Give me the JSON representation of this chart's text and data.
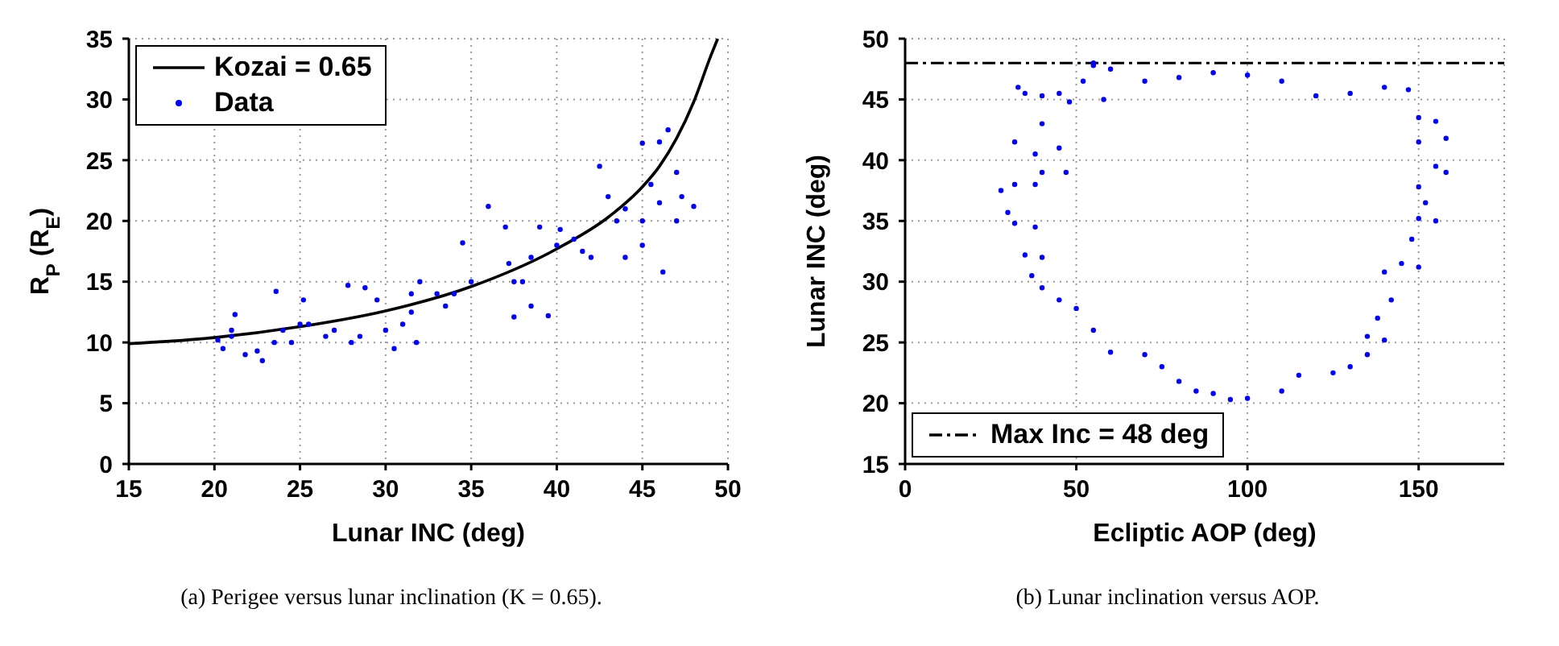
{
  "chart_data": [
    {
      "type": "scatter",
      "xlabel": "Lunar INC (deg)",
      "ylabel": "R$_{P}$ (R$_{E}$)",
      "xlim": [
        15,
        50
      ],
      "ylim": [
        0,
        35
      ],
      "xticks": [
        15,
        20,
        25,
        30,
        35,
        40,
        45,
        50
      ],
      "yticks": [
        0,
        5,
        10,
        15,
        20,
        25,
        30,
        35
      ],
      "grid": true,
      "legend": "top left",
      "annotations": [
        "(a) Perigee versus lunar inclination (K = 0.65)."
      ],
      "series": [
        {
          "name": "Kozai = 0.65",
          "type": "line",
          "color": "#000000",
          "marker": "none",
          "line_style": "solid",
          "x": [
            15,
            20,
            25,
            30,
            35,
            40,
            43,
            45,
            46,
            47,
            48,
            49,
            49.4
          ],
          "values": [
            9.9,
            10.4,
            11.3,
            12.6,
            14.6,
            17.7,
            20.3,
            22.8,
            24.5,
            26.8,
            29.8,
            33.6,
            35
          ]
        },
        {
          "name": "Data",
          "color": "#0000ff",
          "marker": "circle",
          "x": [
            20.2,
            20.5,
            21,
            21.2,
            21,
            21.8,
            22.5,
            22.8,
            23.5,
            23.6,
            24,
            24.5,
            25,
            25.2,
            25.5,
            26.5,
            27,
            28,
            28.5,
            27.8,
            28.8,
            29.5,
            30,
            30.5,
            31,
            31.5,
            31.8,
            31.5,
            32,
            33,
            33.5,
            34,
            34.5,
            35,
            36,
            37,
            37.5,
            37.2,
            38,
            38.5,
            39.5,
            37.5,
            38.5,
            39,
            40,
            40.2,
            41,
            41.5,
            42,
            42.5,
            43,
            43.5,
            44,
            44,
            45,
            46.2,
            45,
            45.5,
            46,
            45,
            46.5,
            47,
            47.3,
            48,
            47,
            46
          ],
          "values": [
            10.2,
            9.5,
            11,
            12.3,
            10.5,
            9,
            9.3,
            8.5,
            10,
            14.2,
            11,
            10,
            11.5,
            13.5,
            11.5,
            10.5,
            11,
            10,
            10.5,
            14.7,
            14.5,
            13.5,
            11,
            9.5,
            11.5,
            12.5,
            10,
            14,
            15,
            14,
            13,
            14,
            18.2,
            15,
            21.2,
            19.5,
            15,
            16.5,
            15,
            13,
            12.2,
            12.1,
            17,
            19.5,
            18,
            19.3,
            18.5,
            17.5,
            17,
            24.5,
            22,
            20,
            21,
            17,
            18,
            15.8,
            20,
            23,
            26.5,
            26.4,
            27.5,
            24,
            22,
            21.2,
            20,
            21.5
          ]
        }
      ]
    },
    {
      "type": "scatter",
      "xlabel": "Ecliptic AOP (deg)",
      "ylabel": "Lunar INC (deg)",
      "xlim": [
        0,
        175
      ],
      "ylim": [
        15,
        50
      ],
      "xticks": [
        0,
        50,
        100,
        150
      ],
      "yticks": [
        15,
        20,
        25,
        30,
        35,
        40,
        45,
        50
      ],
      "grid": true,
      "legend": "bottom left",
      "annotations": [
        "(b) Lunar inclination versus AOP."
      ],
      "ref_lines": [
        {
          "axis": "y",
          "value": 48,
          "label": "Max Inc = 48 deg",
          "color": "#000000",
          "line_style": "dashdot"
        }
      ],
      "series": [
        {
          "color": "#0000ff",
          "marker": "circle",
          "x": [
            55,
            60,
            70,
            80,
            90,
            100,
            110,
            120,
            130,
            140,
            147,
            150,
            155,
            158,
            150,
            155,
            158,
            150,
            152,
            150,
            155,
            148,
            145,
            150,
            140,
            142,
            138,
            135,
            140,
            135,
            130,
            125,
            115,
            110,
            100,
            95,
            90,
            85,
            80,
            75,
            70,
            60,
            55,
            50,
            45,
            40,
            37,
            35,
            40,
            32,
            38,
            30,
            28,
            32,
            38,
            40,
            47,
            38,
            32,
            45,
            40,
            35,
            40,
            45,
            33,
            48,
            52,
            58,
            55
          ],
          "values": [
            47.8,
            47.5,
            46.5,
            46.8,
            47.2,
            47,
            46.5,
            45.3,
            45.5,
            46,
            45.8,
            43.5,
            43.2,
            41.8,
            41.5,
            39.5,
            39,
            37.8,
            36.5,
            35.2,
            35,
            33.5,
            31.5,
            31.2,
            30.8,
            28.5,
            27,
            25.5,
            25.2,
            24,
            23,
            22.5,
            22.3,
            21,
            20.4,
            20.3,
            20.8,
            21,
            21.8,
            23,
            24,
            24.2,
            26,
            27.8,
            28.5,
            29.5,
            30.5,
            32.2,
            32,
            34.8,
            34.5,
            35.7,
            37.5,
            38,
            38,
            39,
            39,
            40.5,
            41.5,
            41,
            43,
            45.5,
            45.3,
            45.5,
            46,
            44.8,
            46.5,
            45,
            48
          ]
        }
      ]
    }
  ]
}
